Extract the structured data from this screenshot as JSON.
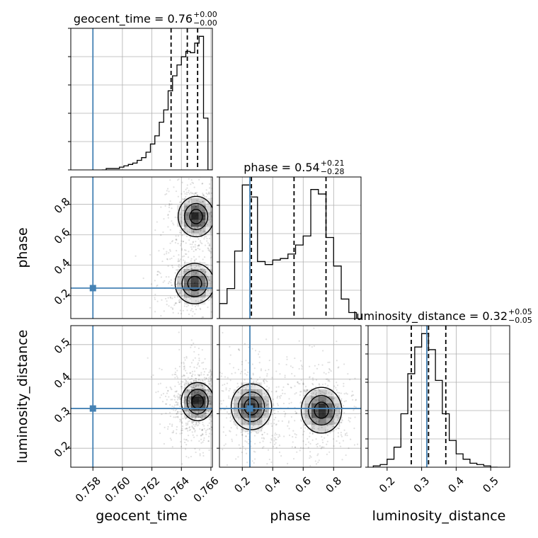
{
  "chart_data": {
    "type": "corner",
    "parameters": [
      "geocent_time",
      "phase",
      "luminosity_distance"
    ],
    "truth": {
      "geocent_time": 0.758,
      "phase": 0.25,
      "luminosity_distance": 0.315
    },
    "truth_color": "#4682b4",
    "axes": {
      "geocent_time": {
        "range": [
          0.7565,
          0.7661
        ],
        "ticks": [
          0.758,
          0.76,
          0.762,
          0.764,
          0.766
        ],
        "tick_labels": [
          "0.758",
          "0.760",
          "0.762",
          "0.764",
          "0.766"
        ]
      },
      "phase": {
        "range": [
          0.05,
          0.98
        ],
        "ticks": [
          0.2,
          0.4,
          0.6,
          0.8
        ],
        "tick_labels": [
          "0.2",
          "0.4",
          "0.6",
          "0.8"
        ]
      },
      "luminosity_distance": {
        "range": [
          0.145,
          0.555
        ],
        "ticks": [
          0.2,
          0.3,
          0.4,
          0.5
        ],
        "tick_labels": [
          "0.2",
          "0.3",
          "0.4",
          "0.5"
        ]
      }
    },
    "titles": {
      "geocent_time": {
        "text": "geocent_time = 0.76",
        "plus": "+0.00",
        "minus": "−0.00"
      },
      "phase": {
        "text": "phase = 0.54",
        "plus": "+0.21",
        "minus": "−0.28"
      },
      "luminosity_distance": {
        "text": "luminosity_distance = 0.32",
        "plus": "+0.05",
        "minus": "−0.05"
      }
    },
    "quantiles": {
      "geocent_time": [
        0.7633,
        0.7644,
        0.7651
      ],
      "phase": [
        0.26,
        0.54,
        0.75
      ],
      "luminosity_distance": [
        0.27,
        0.32,
        0.37
      ]
    },
    "histograms": {
      "geocent_time": {
        "edges": [
          0.7586,
          0.7589,
          0.7592,
          0.7595,
          0.7598,
          0.7601,
          0.7604,
          0.7607,
          0.761,
          0.7613,
          0.7616,
          0.7619,
          0.7622,
          0.7625,
          0.7628,
          0.7631,
          0.7634,
          0.7637,
          0.764,
          0.7643,
          0.7646,
          0.7649,
          0.7652,
          0.7655,
          0.7658,
          0.7661
        ],
        "counts": [
          0,
          1,
          1,
          1,
          2,
          3,
          4,
          5,
          7,
          9,
          13,
          19,
          25,
          35,
          44,
          58,
          69,
          77,
          83,
          87,
          86,
          93,
          98,
          38,
          0
        ]
      },
      "phase": {
        "edges": [
          0.05,
          0.1,
          0.15,
          0.2,
          0.25,
          0.3,
          0.35,
          0.4,
          0.45,
          0.5,
          0.55,
          0.6,
          0.65,
          0.7,
          0.75,
          0.8,
          0.85,
          0.9,
          0.95,
          0.98
        ],
        "counts": [
          10,
          20,
          45,
          89,
          81,
          38,
          36,
          39,
          40,
          43,
          49,
          55,
          86,
          83,
          54,
          35,
          13,
          4,
          0
        ]
      },
      "luminosity_distance": {
        "edges": [
          0.16,
          0.18,
          0.2,
          0.22,
          0.24,
          0.26,
          0.28,
          0.3,
          0.32,
          0.34,
          0.36,
          0.38,
          0.4,
          0.42,
          0.44,
          0.46,
          0.48,
          0.5,
          0.52
        ],
        "counts": [
          1,
          2,
          6,
          15,
          40,
          70,
          90,
          100,
          88,
          65,
          40,
          20,
          10,
          6,
          3,
          2,
          1,
          0
        ]
      }
    },
    "posterior_modes": {
      "phase_vs_geocent_time": [
        {
          "x": 0.765,
          "y": 0.72,
          "sx": 0.00055,
          "sy": 0.06,
          "w": 1.0
        },
        {
          "x": 0.7649,
          "y": 0.28,
          "sx": 0.0006,
          "sy": 0.06,
          "w": 0.9
        }
      ],
      "luminosity_distance_vs_geocent_time": [
        {
          "x": 0.7651,
          "y": 0.335,
          "sx": 0.0005,
          "sy": 0.025,
          "w": 1.0
        }
      ],
      "luminosity_distance_vs_phase": [
        {
          "x": 0.26,
          "y": 0.32,
          "sx": 0.06,
          "sy": 0.03,
          "w": 1.0
        },
        {
          "x": 0.72,
          "y": 0.31,
          "sx": 0.06,
          "sy": 0.03,
          "w": 1.0
        }
      ]
    },
    "axis_labels": {
      "x": [
        "geocent_time",
        "phase",
        "luminosity_distance"
      ],
      "y": [
        "",
        "phase",
        "luminosity_distance"
      ]
    }
  }
}
